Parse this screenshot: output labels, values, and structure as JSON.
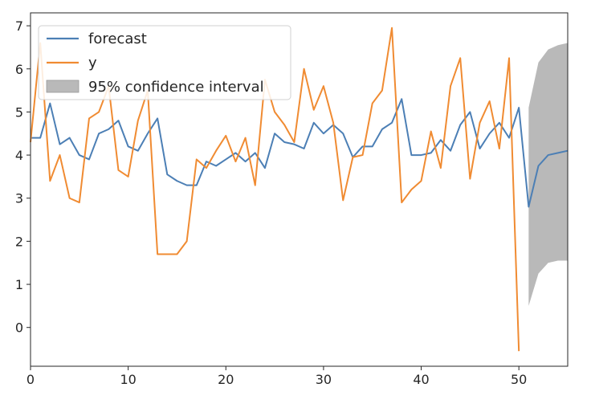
{
  "chart_data": {
    "type": "line",
    "xlim": [
      0,
      55
    ],
    "ylim": [
      -0.9,
      7.3
    ],
    "x_ticks": [
      "0",
      "10",
      "20",
      "30",
      "40",
      "50"
    ],
    "y_ticks": [
      "0",
      "1",
      "2",
      "3",
      "4",
      "5",
      "6",
      "7"
    ],
    "grid": false,
    "legend_position": "top-left",
    "series": [
      {
        "name": "forecast",
        "color": "#4c7fb5",
        "x": [
          0,
          1,
          2,
          3,
          4,
          5,
          6,
          7,
          8,
          9,
          10,
          11,
          12,
          13,
          14,
          15,
          16,
          17,
          18,
          19,
          20,
          21,
          22,
          23,
          24,
          25,
          26,
          27,
          28,
          29,
          30,
          31,
          32,
          33,
          34,
          35,
          36,
          37,
          38,
          39,
          40,
          41,
          42,
          43,
          44,
          45,
          46,
          47,
          48,
          49,
          50,
          51,
          52,
          53,
          54,
          55
        ],
        "values": [
          4.4,
          4.4,
          5.2,
          4.25,
          4.4,
          4.0,
          3.9,
          4.5,
          4.6,
          4.8,
          4.2,
          4.1,
          4.5,
          4.85,
          3.55,
          3.4,
          3.3,
          3.3,
          3.85,
          3.75,
          3.9,
          4.05,
          3.85,
          4.05,
          3.7,
          4.5,
          4.3,
          4.25,
          4.15,
          4.75,
          4.5,
          4.7,
          4.5,
          3.95,
          4.2,
          4.2,
          4.6,
          4.75,
          5.3,
          4.0,
          4.0,
          4.05,
          4.35,
          4.1,
          4.7,
          5.0,
          4.15,
          4.5,
          4.75,
          4.4,
          5.1,
          2.8,
          3.75,
          4.0,
          4.05,
          4.1
        ]
      },
      {
        "name": "y",
        "color": "#f08b32",
        "x": [
          0,
          1,
          2,
          3,
          4,
          5,
          6,
          7,
          8,
          9,
          10,
          11,
          12,
          13,
          14,
          15,
          16,
          17,
          18,
          19,
          20,
          21,
          22,
          23,
          24,
          25,
          26,
          27,
          28,
          29,
          30,
          31,
          32,
          33,
          34,
          35,
          36,
          37,
          38,
          39,
          40,
          41,
          42,
          43,
          44,
          45,
          46,
          47,
          48,
          49,
          50
        ],
        "values": [
          4.3,
          6.6,
          3.4,
          4.0,
          3.0,
          2.9,
          4.85,
          5.0,
          5.6,
          3.65,
          3.5,
          4.8,
          5.5,
          1.7,
          1.7,
          1.7,
          2.0,
          3.9,
          3.7,
          4.1,
          4.45,
          3.85,
          4.4,
          3.3,
          5.75,
          5.0,
          4.7,
          4.3,
          6.0,
          5.05,
          5.6,
          4.75,
          2.95,
          3.95,
          4.0,
          5.2,
          5.5,
          6.95,
          2.9,
          3.2,
          3.4,
          4.55,
          3.7,
          5.6,
          6.25,
          3.45,
          4.75,
          5.25,
          4.15,
          6.25,
          -0.55
        ]
      }
    ],
    "confidence_band": {
      "name": "95% confidence interval",
      "color": "#b9b9b9",
      "x": [
        51,
        52,
        53,
        54,
        55
      ],
      "upper": [
        5.1,
        6.15,
        6.45,
        6.55,
        6.6
      ],
      "lower": [
        0.5,
        1.25,
        1.5,
        1.55,
        1.55
      ]
    }
  }
}
